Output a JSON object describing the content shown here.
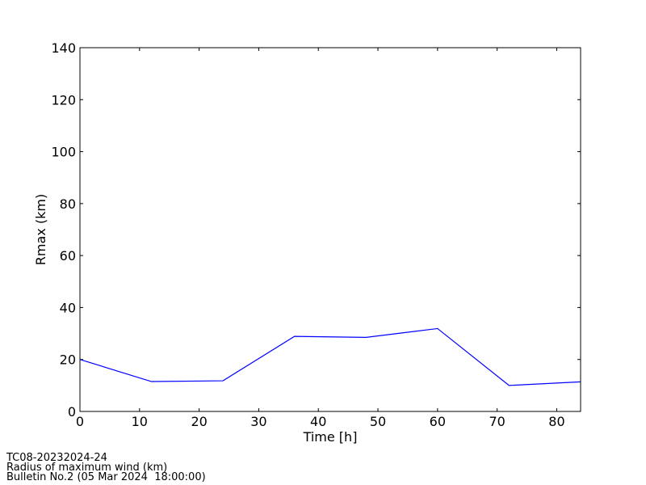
{
  "chart_data": {
    "type": "line",
    "xlabel": "Time [h]",
    "ylabel": "Rmax (km)",
    "x": [
      0,
      12,
      24,
      36,
      48,
      60,
      72,
      84
    ],
    "series": [
      {
        "color": "#0000ff",
        "values": [
          20,
          11.5,
          11.8,
          28.9,
          28.5,
          31.9,
          10,
          11.4
        ]
      }
    ],
    "xlim": [
      0,
      84
    ],
    "xticks": [
      0,
      10,
      20,
      30,
      40,
      50,
      60,
      70,
      80
    ],
    "ylim": [
      0,
      140
    ],
    "yticks": [
      0,
      20,
      40,
      60,
      80,
      100,
      120,
      140
    ],
    "grid": false
  },
  "footer": [
    "TC08-20232024-24",
    "Radius of maximum wind (km)",
    "Bulletin No.2 (05 Mar 2024  18:00:00)"
  ]
}
